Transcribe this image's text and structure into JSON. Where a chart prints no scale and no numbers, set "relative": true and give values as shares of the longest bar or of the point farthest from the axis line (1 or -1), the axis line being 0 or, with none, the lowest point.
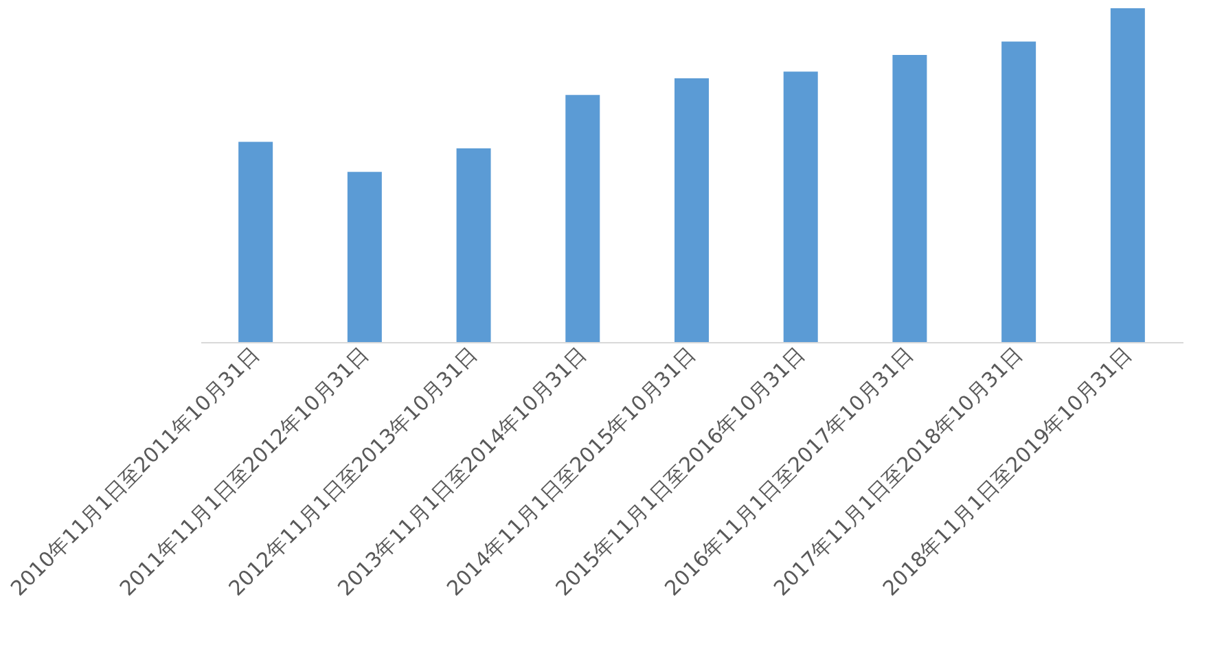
{
  "chart_data": {
    "type": "bar",
    "relative": true,
    "categories": [
      "2010年11月1日至2011年10月31日",
      "2011年11月1日至2012年10月31日",
      "2012年11月1日至2013年10月31日",
      "2013年11月1日至2014年10月31日",
      "2014年11月1日至2015年10月31日",
      "2015年11月1日至2016年10月31日",
      "2016年11月1日至2017年10月31日",
      "2017年11月1日至2018年10月31日",
      "2018年11月1日至2019年10月31日"
    ],
    "values": [
      0.6,
      0.51,
      0.58,
      0.74,
      0.79,
      0.81,
      0.86,
      0.9,
      1
    ],
    "color": "#5b9bd5",
    "grid": false
  }
}
